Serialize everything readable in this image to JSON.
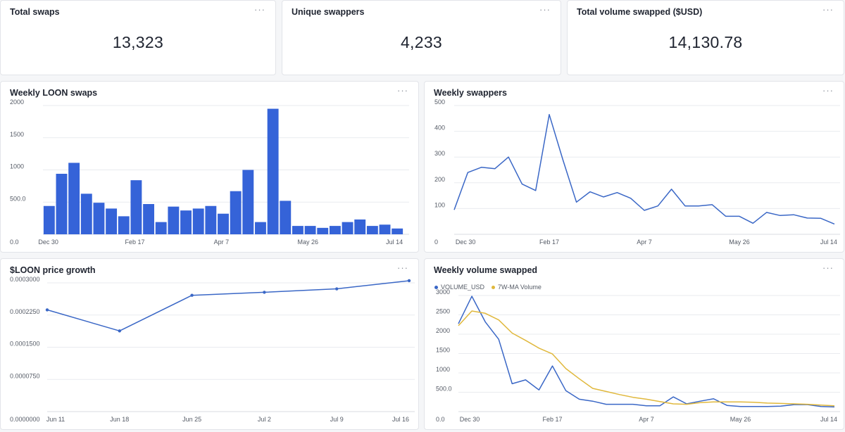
{
  "kpis": [
    {
      "title": "Total swaps",
      "value": "13,323"
    },
    {
      "title": "Unique swappers",
      "value": "4,233"
    },
    {
      "title": "Total volume swapped ($USD)",
      "value": "14,130.78"
    }
  ],
  "menu_glyph": "···",
  "colors": {
    "primary": "#3563d8",
    "line": "#3a67c6",
    "ma": "#e0b83c",
    "grid": "#e9ebef"
  },
  "chart_data": [
    {
      "id": "weekly-loon-swaps",
      "type": "bar",
      "title": "Weekly LOON swaps",
      "y_ticks": [
        "0.0",
        "500.0",
        "1000",
        "1500",
        "2000"
      ],
      "ylim": [
        0,
        2000
      ],
      "x_labels": [
        "Dec 30",
        "Feb 17",
        "Apr 7",
        "May 26",
        "Jul 14"
      ],
      "values": [
        440,
        940,
        1110,
        630,
        490,
        400,
        280,
        840,
        470,
        190,
        430,
        370,
        400,
        440,
        320,
        670,
        1000,
        190,
        1950,
        520,
        130,
        130,
        100,
        130,
        190,
        230,
        130,
        150,
        90
      ]
    },
    {
      "id": "weekly-swappers",
      "type": "line",
      "title": "Weekly swappers",
      "y_ticks": [
        "0",
        "100",
        "200",
        "300",
        "400",
        "500"
      ],
      "ylim": [
        0,
        500
      ],
      "x_labels": [
        "Dec 30",
        "Feb 17",
        "Apr 7",
        "May 26",
        "Jul 14"
      ],
      "values": [
        95,
        240,
        260,
        255,
        300,
        195,
        170,
        465,
        290,
        125,
        165,
        145,
        162,
        140,
        93,
        110,
        175,
        110,
        110,
        115,
        70,
        70,
        43,
        85,
        73,
        76,
        63,
        62,
        40
      ]
    },
    {
      "id": "loon-price-growth",
      "type": "line",
      "title": "$LOON price growth",
      "y_ticks": [
        "0.0000000",
        "0.0000750",
        "0.0001500",
        "0.0002250",
        "0.0003000"
      ],
      "ylim": [
        0,
        0.0003
      ],
      "x_labels": [
        "Jun 11",
        "Jun 18",
        "Jun 25",
        "Jul 2",
        "Jul 9",
        "Jul 16"
      ],
      "values": [
        0.000237,
        0.000188,
        0.000271,
        0.000278,
        0.000286,
        0.000305
      ]
    },
    {
      "id": "weekly-volume-swapped",
      "type": "line",
      "title": "Weekly volume swapped",
      "y_ticks": [
        "0.0",
        "500.0",
        "1000",
        "1500",
        "2000",
        "2500",
        "3000"
      ],
      "ylim": [
        0,
        3000
      ],
      "x_labels": [
        "Dec 30",
        "Feb 17",
        "Apr 7",
        "May 26",
        "Jul 14"
      ],
      "series": [
        {
          "name": "VOLUME_USD",
          "values": [
            2270,
            2980,
            2320,
            1870,
            720,
            820,
            560,
            1180,
            540,
            320,
            270,
            190,
            190,
            190,
            150,
            150,
            380,
            200,
            270,
            330,
            160,
            130,
            130,
            130,
            140,
            180,
            180,
            130,
            120
          ]
        },
        {
          "name": "7W-MA Volume",
          "values": [
            2220,
            2600,
            2540,
            2370,
            2030,
            1840,
            1640,
            1490,
            1110,
            850,
            600,
            520,
            440,
            370,
            320,
            260,
            200,
            190,
            230,
            250,
            250,
            250,
            240,
            220,
            210,
            200,
            190,
            170,
            150
          ]
        }
      ]
    }
  ]
}
